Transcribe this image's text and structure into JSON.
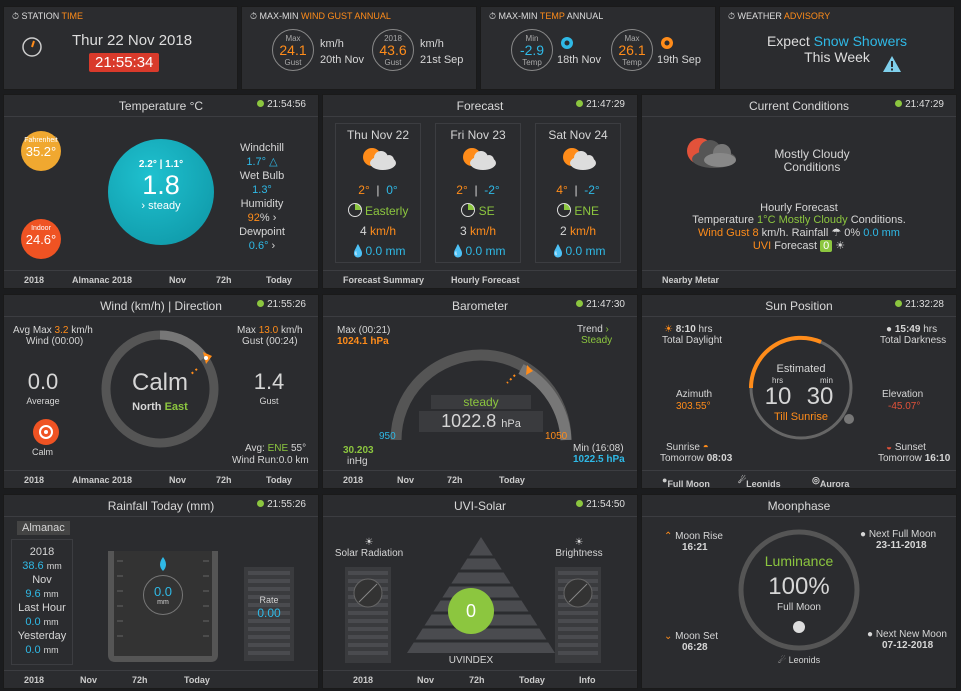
{
  "station": {
    "label": "STATION",
    "accent": "TIME",
    "date": "Thur 22 Nov 2018",
    "time": "21:55:34"
  },
  "gust": {
    "label": "MAX-MIN",
    "accent": "WIND GUST ANNUAL",
    "max_label": "Max",
    "max_value": "24.1",
    "max_sub": "Gust",
    "unit1": "km/h",
    "date1": "20th Nov",
    "year_label": "2018",
    "year_value": "43.6",
    "year_sub": "Gust",
    "unit2": "km/h",
    "date2": "21st Sep"
  },
  "temp_annual": {
    "label": "MAX-MIN",
    "accent": "TEMP",
    "label2": "ANNUAL",
    "min_label": "Min",
    "min_value": "-2.9",
    "min_sub": "Temp",
    "date1": "18th Nov",
    "max_label": "Max",
    "max_value": "26.1",
    "max_sub": "Temp",
    "date2": "19th Sep"
  },
  "advisory": {
    "label": "WEATHER",
    "accent": "ADVISORY",
    "line1a": "Expect",
    "line1b": "Snow Showers",
    "line2": "This Week"
  },
  "temperature": {
    "title": "Temperature °C",
    "time": "21:54:56",
    "fahrenheit_label": "Fahrenheit",
    "fahrenheit": "35.2°",
    "indoor_label": "Indoor",
    "indoor": "24.6°",
    "minmax": "2.2° | 1.1°",
    "value": "1.8",
    "trend": "steady",
    "windchill_label": "Windchill",
    "windchill": "1.7°",
    "wetbulb_label": "Wet Bulb",
    "wetbulb": "1.3°",
    "humidity_label": "Humidity",
    "humidity": "92",
    "humidity_unit": "%",
    "dewpoint_label": "Dewpoint",
    "dewpoint": "0.6°",
    "footer": [
      "2018",
      "Almanac 2018",
      "Nov",
      "72h",
      "Today"
    ]
  },
  "forecast": {
    "title": "Forecast",
    "time": "21:47:29",
    "days": [
      {
        "day": "Thu Nov 22",
        "hi": "2°",
        "lo": "0°",
        "dir": "Easterly",
        "wind": "4",
        "wind_unit": "km/h",
        "rain": "0.0",
        "rain_unit": "mm"
      },
      {
        "day": "Fri Nov 23",
        "hi": "2°",
        "lo": "-2°",
        "dir": "SE",
        "wind": "3",
        "wind_unit": "km/h",
        "rain": "0.0",
        "rain_unit": "mm"
      },
      {
        "day": "Sat Nov 24",
        "hi": "4°",
        "lo": "-2°",
        "dir": "ENE",
        "wind": "2",
        "wind_unit": "km/h",
        "rain": "0.0",
        "rain_unit": "mm"
      }
    ],
    "footer": [
      "Forecast Summary",
      "Hourly Forecast"
    ]
  },
  "conditions": {
    "title": "Current Conditions",
    "time": "21:47:29",
    "summary1": "Mostly Cloudy",
    "summary2": "Conditions",
    "hourly_title": "Hourly Forecast",
    "temp_label": "Temperature",
    "temp_value": "1°C",
    "cond": "Mostly Cloudy",
    "cond_suffix": "Conditions.",
    "gust_label": "Wind Gust",
    "gust_value": "8",
    "gust_unit": "km/h. Rainfall",
    "rain_pct": "0%",
    "rain_mm": "0.0 mm",
    "uvi_label": "UVI",
    "uvi_text": "Forecast",
    "uvi_value": "0",
    "footer": [
      "Nearby Metar"
    ]
  },
  "wind": {
    "title": "Wind (km/h) | Direction",
    "time": "21:55:26",
    "avgmax_label": "Avg Max",
    "avgmax": "3.2",
    "avgmax_unit": "km/h",
    "wind_time": "Wind (00:00)",
    "max_label": "Max",
    "max": "13.0",
    "max_unit": "km/h",
    "gust_time": "Gust (00:24)",
    "average": "0.0",
    "average_label": "Average",
    "gust": "1.4",
    "gust_label": "Gust",
    "calm": "Calm",
    "dir1": "North",
    "dir2": "East",
    "calm_small": "Calm",
    "avg_label": "Avg:",
    "avg_dir": "ENE",
    "avg_deg": "55°",
    "run_label": "Wind Run:",
    "run_value": "0.0 km",
    "footer": [
      "2018",
      "Almanac 2018",
      "Nov",
      "72h",
      "Today"
    ]
  },
  "barometer": {
    "title": "Barometer",
    "time": "21:47:30",
    "max_label": "Max (00:21)",
    "max_value": "1024.1 hPa",
    "trend_label": "Trend",
    "trend_value": "Steady",
    "state": "steady",
    "value": "1022.8",
    "unit": "hPa",
    "scale_min": "950",
    "scale_max": "1050",
    "inhg": "30.203",
    "inhg_unit": "inHg",
    "min_label": "Min (16:08)",
    "min_value": "1022.5 hPa",
    "footer": [
      "2018",
      "Nov",
      "72h",
      "Today"
    ]
  },
  "sun": {
    "title": "Sun Position",
    "time": "21:32:28",
    "daylight": "8:10",
    "daylight_unit": "hrs",
    "daylight_label": "Total Daylight",
    "darkness": "15:49",
    "darkness_unit": "hrs",
    "darkness_label": "Total Darkness",
    "azimuth_label": "Azimuth",
    "azimuth": "303.55°",
    "elevation_label": "Elevation",
    "elevation": "-45.07°",
    "estimated": "Estimated",
    "hrs_label": "hrs",
    "min_label": "min",
    "hrs": "10",
    "mins": "30",
    "till": "Till Sunrise",
    "sunrise_label": "Sunrise",
    "sunrise_sub": "Tomorrow",
    "sunrise": "08:03",
    "sunset_label": "Sunset",
    "sunset_sub": "Tomorrow",
    "sunset": "16:10",
    "footer": [
      "Full Moon",
      "Leonids",
      "Aurora"
    ]
  },
  "rain": {
    "title": "Rainfall Today (mm)",
    "time": "21:55:26",
    "almanac": "Almanac",
    "year_label": "2018",
    "year": "38.6",
    "year_unit": "mm",
    "month_label": "Nov",
    "month": "9.6",
    "month_unit": "mm",
    "hour_label": "Last Hour",
    "hour": "0.0",
    "hour_unit": "mm",
    "yest_label": "Yesterday",
    "yest": "0.0",
    "yest_unit": "mm",
    "today": "0.0",
    "today_unit": "mm",
    "rate_label": "Rate",
    "rate": "0.00",
    "footer": [
      "2018",
      "Nov",
      "72h",
      "Today"
    ]
  },
  "uvi": {
    "title": "UVI-Solar",
    "time": "21:54:50",
    "solar_label": "Solar Radiation",
    "bright_label": "Brightness",
    "value": "0",
    "uvindex": "UVINDEX",
    "footer": [
      "2018",
      "Nov",
      "72h",
      "Today",
      "Info"
    ]
  },
  "moon": {
    "title": "Moonphase",
    "rise_label": "Moon Rise",
    "rise": "16:21",
    "full_label": "Next Full Moon",
    "full": "23-11-2018",
    "luminance": "Luminance",
    "pct": "100%",
    "phase": "Full Moon",
    "set_label": "Moon Set",
    "set": "06:28",
    "new_label": "Next New Moon",
    "new": "07-12-2018",
    "leonids": "Leonids"
  }
}
